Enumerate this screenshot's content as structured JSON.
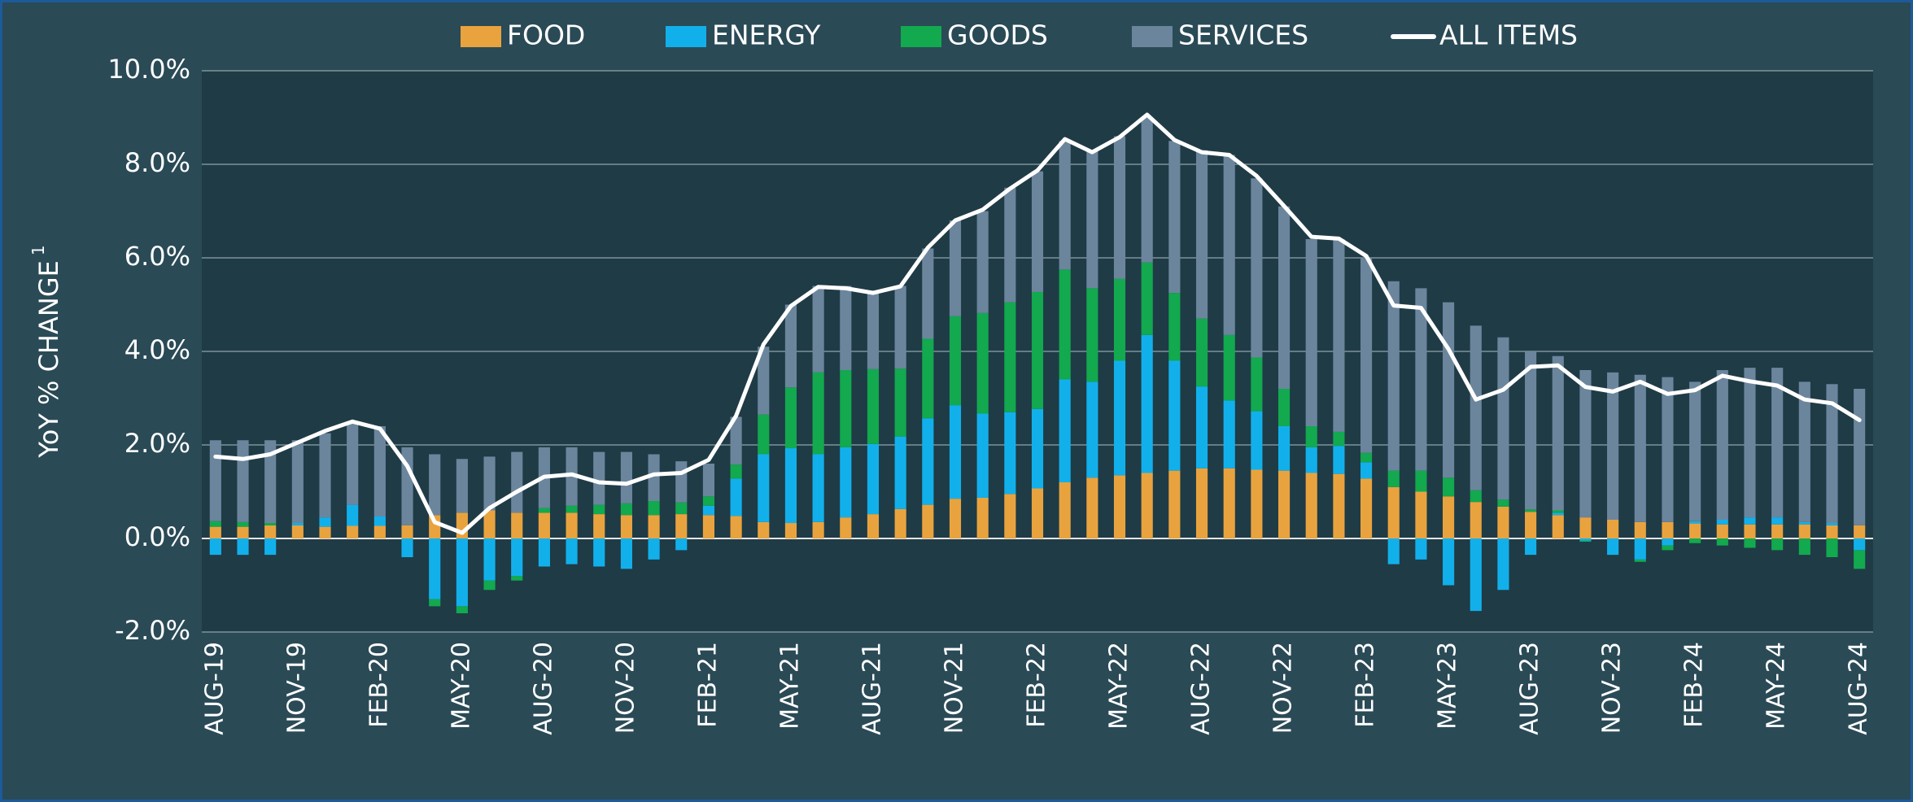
{
  "chart_data": {
    "type": "bar",
    "stacked": true,
    "yaxis_label": "YoY % CHANGE",
    "yaxis_label_note": "1",
    "categories": [
      "AUG-19",
      null,
      null,
      "NOV-19",
      null,
      null,
      "FEB-20",
      null,
      null,
      "MAY-20",
      null,
      null,
      "AUG-20",
      null,
      null,
      "NOV-20",
      null,
      null,
      "FEB-21",
      null,
      null,
      "MAY-21",
      null,
      null,
      "AUG-21",
      null,
      null,
      "NOV-21",
      null,
      null,
      "FEB-22",
      null,
      null,
      "MAY-22",
      null,
      null,
      "AUG-22",
      null,
      null,
      "NOV-22",
      null,
      null,
      "FEB-23",
      null,
      null,
      "MAY-23",
      null,
      null,
      "AUG-23",
      null,
      null,
      "NOV-23",
      null,
      null,
      "FEB-24",
      null,
      null,
      "MAY-24",
      null,
      null,
      "AUG-24"
    ],
    "series": [
      {
        "name": "FOOD",
        "color": "#e9a33e",
        "values": [
          0.25,
          0.25,
          0.28,
          0.28,
          0.25,
          0.27,
          0.27,
          0.28,
          0.5,
          0.55,
          0.6,
          0.55,
          0.55,
          0.55,
          0.52,
          0.5,
          0.5,
          0.52,
          0.5,
          0.48,
          0.35,
          0.33,
          0.35,
          0.45,
          0.52,
          0.63,
          0.72,
          0.85,
          0.87,
          0.95,
          1.07,
          1.2,
          1.3,
          1.35,
          1.4,
          1.45,
          1.5,
          1.5,
          1.47,
          1.45,
          1.4,
          1.38,
          1.28,
          1.1,
          1.0,
          0.9,
          0.78,
          0.68,
          0.57,
          0.5,
          0.45,
          0.4,
          0.35,
          0.35,
          0.32,
          0.3,
          0.3,
          0.3,
          0.3,
          0.28,
          0.28
        ]
      },
      {
        "name": "ENERGY",
        "color": "#12b0eb",
        "values": [
          -0.35,
          -0.35,
          -0.35,
          0.05,
          0.2,
          0.45,
          0.2,
          -0.4,
          -1.3,
          -1.45,
          -0.9,
          -0.8,
          -0.6,
          -0.55,
          -0.6,
          -0.65,
          -0.45,
          -0.25,
          0.2,
          0.8,
          1.45,
          1.6,
          1.45,
          1.5,
          1.5,
          1.55,
          1.85,
          2.0,
          1.8,
          1.75,
          1.7,
          2.2,
          2.05,
          2.45,
          2.95,
          2.35,
          1.75,
          1.45,
          1.25,
          0.95,
          0.55,
          0.6,
          0.35,
          -0.55,
          -0.45,
          -1.0,
          -1.55,
          -1.1,
          -0.35,
          0.05,
          -0.05,
          -0.35,
          -0.45,
          -0.15,
          0.05,
          0.1,
          0.15,
          0.15,
          0.05,
          0.05,
          -0.25
        ]
      },
      {
        "name": "GOODS",
        "color": "#12a94f",
        "values": [
          0.12,
          0.1,
          0.05,
          0.0,
          0.0,
          0.0,
          0.0,
          0.0,
          -0.15,
          -0.15,
          -0.2,
          -0.1,
          0.1,
          0.15,
          0.2,
          0.25,
          0.3,
          0.25,
          0.2,
          0.3,
          0.85,
          1.3,
          1.75,
          1.65,
          1.6,
          1.45,
          1.7,
          1.9,
          2.15,
          2.35,
          2.5,
          2.35,
          2.0,
          1.75,
          1.55,
          1.45,
          1.45,
          1.4,
          1.15,
          0.8,
          0.45,
          0.3,
          0.2,
          0.35,
          0.45,
          0.4,
          0.25,
          0.15,
          0.05,
          0.05,
          -0.02,
          0.0,
          -0.05,
          -0.1,
          -0.1,
          -0.15,
          -0.2,
          -0.25,
          -0.35,
          -0.4,
          -0.4
        ]
      },
      {
        "name": "SERVICES",
        "color": "#6b859d",
        "values": [
          1.73,
          1.75,
          1.77,
          1.77,
          1.8,
          1.78,
          1.93,
          1.67,
          1.3,
          1.15,
          1.15,
          1.3,
          1.3,
          1.25,
          1.13,
          1.1,
          1.0,
          0.88,
          0.7,
          1.02,
          1.45,
          1.77,
          1.85,
          1.8,
          1.68,
          1.77,
          1.93,
          2.05,
          2.18,
          2.45,
          2.58,
          2.75,
          2.95,
          3.05,
          3.1,
          3.25,
          3.6,
          3.85,
          3.83,
          3.9,
          4.0,
          4.12,
          4.17,
          4.05,
          3.9,
          3.75,
          3.52,
          3.47,
          3.38,
          3.3,
          3.15,
          3.15,
          3.15,
          3.1,
          2.98,
          3.2,
          3.2,
          3.2,
          3.0,
          2.97,
          2.92
        ]
      }
    ],
    "line": {
      "name": "ALL ITEMS",
      "color": "#ffffff",
      "values": [
        1.75,
        1.7,
        1.8,
        2.05,
        2.3,
        2.5,
        2.35,
        1.55,
        0.35,
        0.12,
        0.65,
        1.0,
        1.32,
        1.37,
        1.2,
        1.17,
        1.37,
        1.4,
        1.68,
        2.62,
        4.15,
        4.97,
        5.38,
        5.35,
        5.25,
        5.39,
        6.22,
        6.8,
        7.03,
        7.48,
        7.87,
        8.54,
        8.26,
        8.58,
        9.06,
        8.52,
        8.26,
        8.2,
        7.75,
        7.11,
        6.45,
        6.41,
        6.04,
        4.98,
        4.93,
        4.05,
        2.97,
        3.18,
        3.67,
        3.7,
        3.24,
        3.14,
        3.35,
        3.09,
        3.17,
        3.48,
        3.36,
        3.27,
        2.97,
        2.89,
        2.53
      ]
    },
    "ylim": [
      -2,
      10
    ],
    "yticks": [
      {
        "value": -2,
        "label": "-2.0%"
      },
      {
        "value": 0,
        "label": "0.0%"
      },
      {
        "value": 2,
        "label": "2.0%"
      },
      {
        "value": 4,
        "label": "4.0%"
      },
      {
        "value": 6,
        "label": "6.0%"
      },
      {
        "value": 8,
        "label": "8.0%"
      },
      {
        "value": 10,
        "label": "10.0%"
      }
    ],
    "grid": true
  }
}
